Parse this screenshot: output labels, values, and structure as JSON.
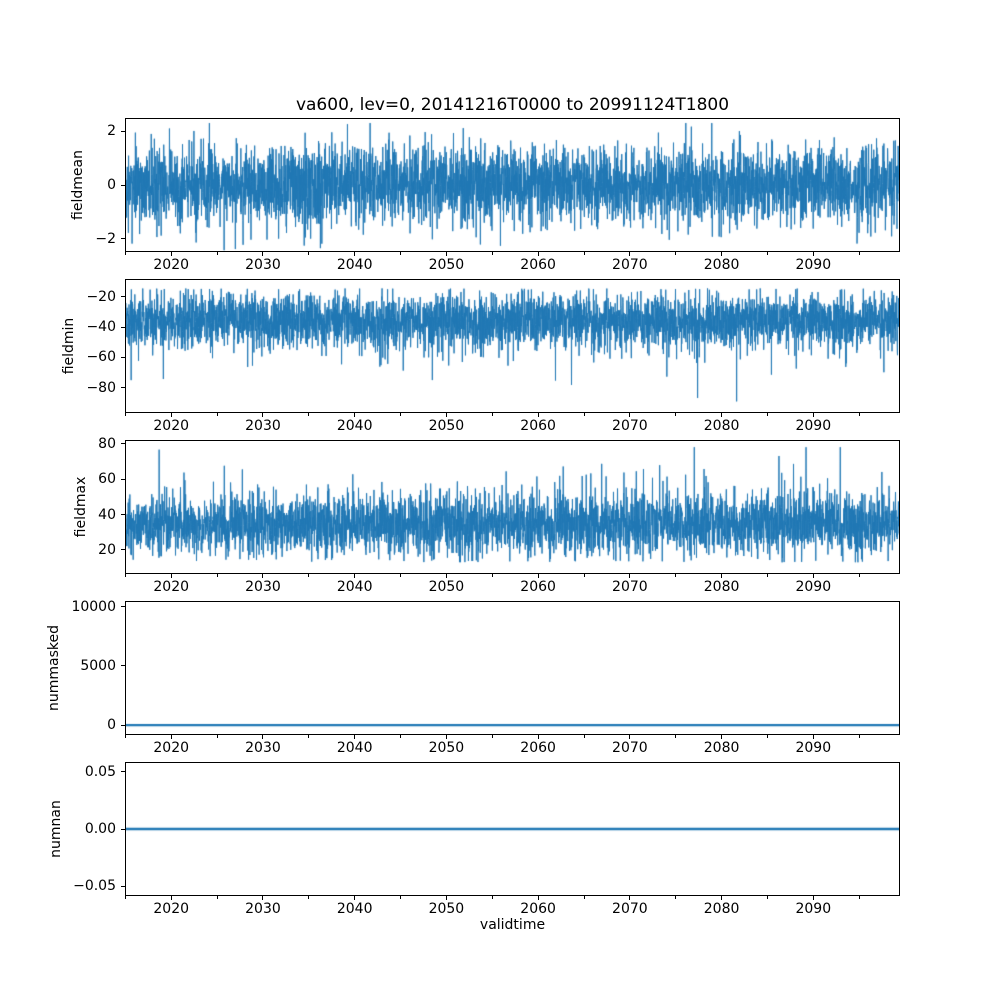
{
  "chart_data": {
    "type": "line",
    "title": "va600, lev=0, 20141216T0000 to 20991124T1800",
    "xlabel": "validtime",
    "line_color": "#1f77b4",
    "axis_color": "#000000",
    "background_color": "#ffffff",
    "x_axis": {
      "start_label": "20141216T0000",
      "end_label": "20991124T1800",
      "range_years": [
        2014.96,
        2099.45
      ],
      "major_tick_values": [
        2020,
        2030,
        2040,
        2050,
        2060,
        2070,
        2080,
        2090
      ],
      "major_tick_labels": [
        "2020",
        "2030",
        "2040",
        "2050",
        "2060",
        "2070",
        "2080",
        "2090"
      ],
      "minor_tick_step_years": 5,
      "grid": false,
      "legend": "none"
    },
    "subplots": [
      {
        "ylabel": "fieldmean",
        "ylim": [
          -2.45,
          2.45
        ],
        "yticks": [
          {
            "v": 2,
            "label": "2"
          },
          {
            "v": 0,
            "label": "0"
          },
          {
            "v": -2,
            "label": "−2"
          }
        ],
        "series": {
          "kind": "noise-symmetric",
          "n": 4200,
          "seed": 101,
          "mean": 0,
          "sd": 0.72,
          "clip": [
            -2.42,
            2.3
          ],
          "dip": {
            "x_years": [
              2031,
              2039
            ],
            "neg_gain": 1.25
          }
        },
        "observed": {
          "typical_envelope": [
            -1.6,
            1.6
          ],
          "extremes": [
            -2.4,
            2.2
          ],
          "note": "dense noise centered on 0; deepest negative excursions near 2031-2039"
        }
      },
      {
        "ylabel": "fieldmin",
        "ylim": [
          -96,
          -9
        ],
        "yticks": [
          {
            "v": -20,
            "label": "−20"
          },
          {
            "v": -40,
            "label": "−40"
          },
          {
            "v": -60,
            "label": "−60"
          },
          {
            "v": -80,
            "label": "−80"
          }
        ],
        "series": {
          "kind": "noise-skew-down",
          "n": 4200,
          "seed": 202,
          "center": -36,
          "sd": 9,
          "ceiling": -14.5,
          "spike_p": 0.022,
          "spike_amp": [
            8,
            28
          ],
          "deep_spike_p": 0.0025,
          "deep_spike_amp": [
            30,
            52
          ],
          "floor": -89
        },
        "observed": {
          "typical_envelope": [
            -60,
            -15
          ],
          "extreme_min": -88,
          "note": "dense mass -15 to -55 with frequent downward spikes to -60..-85"
        }
      },
      {
        "ylabel": "fieldmax",
        "ylim": [
          7,
          81.5
        ],
        "yticks": [
          {
            "v": 80,
            "label": "80"
          },
          {
            "v": 60,
            "label": "60"
          },
          {
            "v": 40,
            "label": "40"
          },
          {
            "v": 20,
            "label": "20"
          }
        ],
        "series": {
          "kind": "noise-skew-up",
          "n": 4200,
          "seed": 303,
          "center": 34,
          "sd": 8.5,
          "floor_val": 13,
          "spike_p": 0.022,
          "spike_amp": [
            8,
            26
          ],
          "tall_spike_p": 0.002,
          "tall_spike_amp": [
            34,
            44
          ],
          "ceil": 78
        },
        "observed": {
          "typical_envelope": [
            14,
            60
          ],
          "extreme_max": 78,
          "note": "dense mass 15 to 55 with frequent upward spikes to 60..78"
        }
      },
      {
        "ylabel": "nummasked",
        "ylim": [
          -750,
          10400
        ],
        "yticks": [
          {
            "v": 10000,
            "label": "10000"
          },
          {
            "v": 5000,
            "label": "5000"
          },
          {
            "v": 0,
            "label": "0"
          }
        ],
        "series": {
          "kind": "constant",
          "value": 0
        },
        "observed": {
          "constant_value": 0,
          "note": "flat line at 0 for entire period"
        }
      },
      {
        "ylabel": "numnan",
        "ylim": [
          -0.0575,
          0.0575
        ],
        "yticks": [
          {
            "v": 0.05,
            "label": "0.05"
          },
          {
            "v": 0,
            "label": "0.00"
          },
          {
            "v": -0.05,
            "label": "−0.05"
          }
        ],
        "series": {
          "kind": "constant",
          "value": 0
        },
        "observed": {
          "constant_value": 0,
          "note": "flat line at 0.00 for entire period"
        }
      }
    ]
  }
}
